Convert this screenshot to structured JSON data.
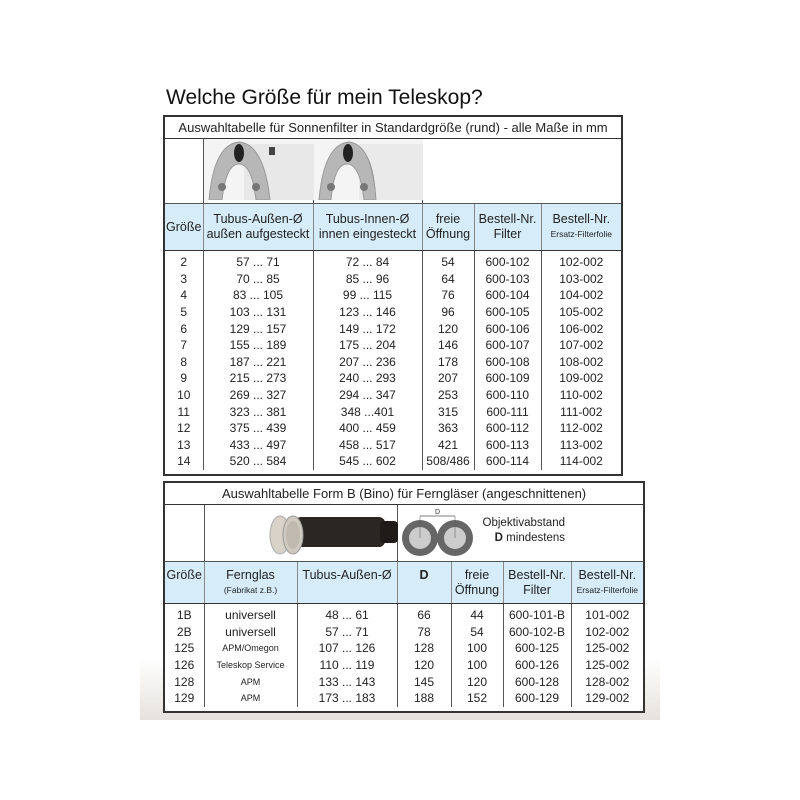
{
  "heading": "Welche Größe für mein Teleskop?",
  "table1": {
    "title": "Auswahltabelle für Sonnenfilter in Standardgröße (rund) - alle Maße in mm",
    "headers": [
      "Größe",
      "Tubus-Außen-Ø",
      "außen aufgesteckt",
      "Tubus-Innen-Ø",
      "innen eingesteckt",
      "freie",
      "Öffnung",
      "Bestell-Nr.",
      "Filter",
      "Bestell-Nr.",
      "Ersatz-Filterfolie"
    ],
    "rows": [
      [
        "2",
        "57 ... 71",
        "72 ... 84",
        "54",
        "600-102",
        "102-002"
      ],
      [
        "3",
        "70 ... 85",
        "85 ... 96",
        "64",
        "600-103",
        "103-002"
      ],
      [
        "4",
        "83 ... 105",
        "99 ... 115",
        "76",
        "600-104",
        "104-002"
      ],
      [
        "5",
        "103 ... 131",
        "123 ... 146",
        "96",
        "600-105",
        "105-002"
      ],
      [
        "6",
        "129 ... 157",
        "149 ... 172",
        "120",
        "600-106",
        "106-002"
      ],
      [
        "7",
        "155 ... 189",
        "175 ... 204",
        "146",
        "600-107",
        "107-002"
      ],
      [
        "8",
        "187 ... 221",
        "207 ... 236",
        "178",
        "600-108",
        "108-002"
      ],
      [
        "9",
        "215 ... 273",
        "240 ... 293",
        "207",
        "600-109",
        "109-002"
      ],
      [
        "10",
        "269 ... 327",
        "294 ... 347",
        "253",
        "600-110",
        "110-002"
      ],
      [
        "11",
        "323 ... 381",
        "348 ...401",
        "315",
        "600-111",
        "111-002"
      ],
      [
        "12",
        "375 ... 439",
        "400 ... 459",
        "363",
        "600-112",
        "112-002"
      ],
      [
        "13",
        "433 ... 497",
        "458 ... 517",
        "421",
        "600-113",
        "113-002"
      ],
      [
        "14",
        "520 ... 584",
        "545 ... 602",
        "508/486",
        "600-114",
        "114-002"
      ]
    ]
  },
  "table2": {
    "title": "Auswahltabelle Form B (Bino) für Ferngläser  (angeschnittenen)",
    "diagram_label": "D",
    "diagram_caption_1": "Objektivabstand",
    "diagram_caption_2_bold": "D",
    "diagram_caption_2": " mindestens",
    "headers": [
      "Größe",
      "Fernglas",
      "(Fabrikat z.B.)",
      "Tubus-Außen-Ø",
      "D",
      "freie",
      "Öffnung",
      "Bestell-Nr.",
      "Filter",
      "Bestell-Nr.",
      "Ersatz-Filterfolie"
    ],
    "rows": [
      [
        "1B",
        "universell",
        "48 ... 61",
        "66",
        "44",
        "600-101-B",
        "101-002"
      ],
      [
        "2B",
        "universell",
        "57 ... 71",
        "78",
        "54",
        "600-102-B",
        "102-002"
      ],
      [
        "125",
        "APM/Omegon",
        "107 ... 126",
        "128",
        "100",
        "600-125",
        "125-002"
      ],
      [
        "126",
        "Teleskop Service",
        "110 ... 119",
        "120",
        "100",
        "600-126",
        "125-002"
      ],
      [
        "128",
        "APM",
        "133 ... 143",
        "145",
        "120",
        "600-128",
        "128-002"
      ],
      [
        "129",
        "APM",
        "173 ... 183",
        "188",
        "152",
        "600-129",
        "129-002"
      ]
    ]
  }
}
